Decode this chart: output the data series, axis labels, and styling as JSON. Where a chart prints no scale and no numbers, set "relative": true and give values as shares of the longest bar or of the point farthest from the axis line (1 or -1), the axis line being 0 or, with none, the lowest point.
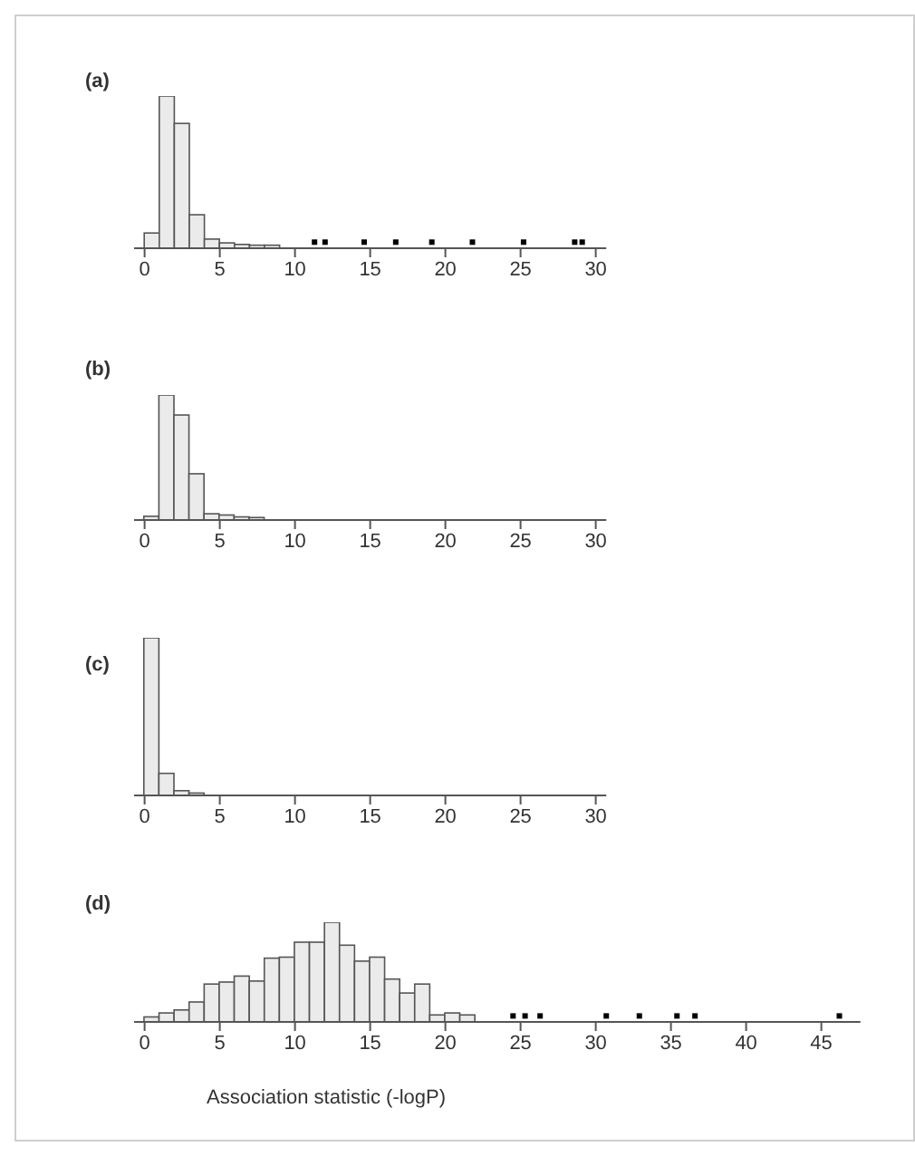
{
  "chart_data": [
    {
      "type": "bar",
      "title": "(a)",
      "relative": true,
      "xlim": [
        -0.7,
        30.7
      ],
      "xticks": [
        0,
        5,
        10,
        15,
        20,
        25,
        30
      ],
      "color": "#ebebeb",
      "x": [
        0.5,
        1.5,
        2.5,
        3.5,
        4.5,
        5.5,
        6.5,
        7.5,
        8.5
      ],
      "values": [
        0.1,
        1,
        0.82,
        0.22,
        0.06,
        0.035,
        0.025,
        0.02,
        0.02
      ],
      "series": [
        {
          "type": "scatter",
          "color": "#000000",
          "marker": "square",
          "x": [
            11.3,
            12.0,
            14.6,
            16.7,
            19.1,
            21.8,
            25.2,
            28.6,
            29.1
          ],
          "values": [
            0.04,
            0.04,
            0.04,
            0.04,
            0.04,
            0.04,
            0.04,
            0.04,
            0.04
          ]
        }
      ]
    },
    {
      "type": "bar",
      "title": "(b)",
      "relative": true,
      "xlim": [
        -0.7,
        30.7
      ],
      "xticks": [
        0,
        5,
        10,
        15,
        20,
        25,
        30
      ],
      "color": "#ebebeb",
      "x": [
        0.5,
        1.5,
        2.5,
        3.5,
        4.5,
        5.5,
        6.5,
        7.5
      ],
      "values": [
        0.03,
        1,
        0.84,
        0.37,
        0.05,
        0.04,
        0.025,
        0.02
      ]
    },
    {
      "type": "bar",
      "title": "(c)",
      "relative": true,
      "xlim": [
        -0.7,
        30.7
      ],
      "xticks": [
        0,
        5,
        10,
        15,
        20,
        25,
        30
      ],
      "color": "#ebebeb",
      "x": [
        0.5,
        1.5,
        2.5,
        3.5
      ],
      "values": [
        1,
        0.14,
        0.03,
        0.015
      ]
    },
    {
      "type": "bar",
      "title": "(d)",
      "xlabel": "Association statistic (-logP)",
      "relative": true,
      "xlim": [
        -0.7,
        47.6
      ],
      "xticks": [
        0,
        5,
        10,
        15,
        20,
        25,
        30,
        35,
        40,
        45
      ],
      "color": "#ebebeb",
      "x": [
        0.5,
        1.5,
        2.5,
        3.5,
        4.5,
        5.5,
        6.5,
        7.5,
        8.5,
        9.5,
        10.5,
        11.5,
        12.5,
        13.5,
        14.5,
        15.5,
        16.5,
        17.5,
        18.5,
        19.5,
        20.5,
        21.5
      ],
      "values": [
        0.05,
        0.09,
        0.12,
        0.2,
        0.38,
        0.4,
        0.46,
        0.41,
        0.64,
        0.65,
        0.8,
        0.8,
        1,
        0.77,
        0.61,
        0.65,
        0.43,
        0.29,
        0.38,
        0.07,
        0.09,
        0.07
      ],
      "series": [
        {
          "type": "scatter",
          "color": "#000000",
          "marker": "square",
          "x": [
            24.5,
            25.3,
            26.3,
            30.7,
            32.9,
            35.4,
            36.6,
            46.2
          ],
          "values": [
            0.06,
            0.06,
            0.06,
            0.06,
            0.06,
            0.06,
            0.06,
            0.06
          ]
        }
      ]
    }
  ]
}
